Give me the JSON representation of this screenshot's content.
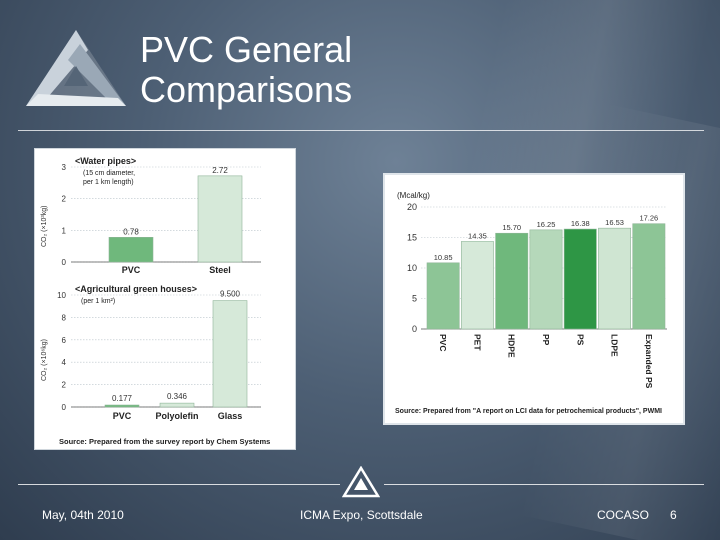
{
  "slide": {
    "title_line1": "PVC General",
    "title_line2": "Comparisons",
    "footer": {
      "date": "May, 04th 2010",
      "event": "ICMA Expo, Scottsdale",
      "org": "COCASO",
      "page": "6"
    },
    "colors": {
      "background": "#4d5f74",
      "accent_green_dark": "#2e9645",
      "bar_green": "#6fb87c",
      "bar_light": "#d6e9d9"
    }
  },
  "chart_data": [
    {
      "type": "bar",
      "title": "<Water pipes>",
      "subtitle": "(15 cm diameter, per 1 km length)",
      "subtitle_line1": "(15 cm diameter,",
      "subtitle_line2": "per 1 km length)",
      "ylabel": "CO₂ (×10³kg)",
      "categories": [
        "PVC",
        "Steel"
      ],
      "values": [
        0.78,
        2.72
      ],
      "value_labels": [
        "0.78",
        "2.72"
      ],
      "ticks": [
        "0",
        "1",
        "2",
        "3"
      ],
      "ylim": [
        0,
        3
      ],
      "grid": true
    },
    {
      "type": "bar",
      "title": "<Agricultural green houses>",
      "subtitle": "(per 1 km²)",
      "ylabel": "CO₂ (×10⁶kg)",
      "categories": [
        "PVC",
        "Polyolefin",
        "Glass"
      ],
      "values": [
        0.177,
        0.346,
        9.5
      ],
      "value_labels": [
        "0.177",
        "0.346",
        "9.500"
      ],
      "ticks": [
        "0",
        "2",
        "4",
        "6",
        "8",
        "10"
      ],
      "ylim": [
        0,
        10
      ],
      "grid": true,
      "source": "Source: Prepared from the survey report by Chem Systems"
    },
    {
      "type": "bar",
      "ylabel": "(Mcal/kg)",
      "categories": [
        "PVC",
        "PET",
        "HDPE",
        "PP",
        "PS",
        "LDPE",
        "Expanded PS"
      ],
      "values": [
        10.85,
        14.35,
        15.7,
        16.25,
        16.38,
        16.53,
        17.26
      ],
      "value_labels": [
        "10.85",
        "14.35",
        "15.70",
        "16.25",
        "16.38",
        "16.53",
        "17.26"
      ],
      "ticks": [
        "0",
        "5",
        "10",
        "15",
        "20"
      ],
      "ylim": [
        0,
        20
      ],
      "grid": true,
      "source": "Source: Prepared from \"A report on LCI data for petrochemical products\", PWMI"
    }
  ]
}
